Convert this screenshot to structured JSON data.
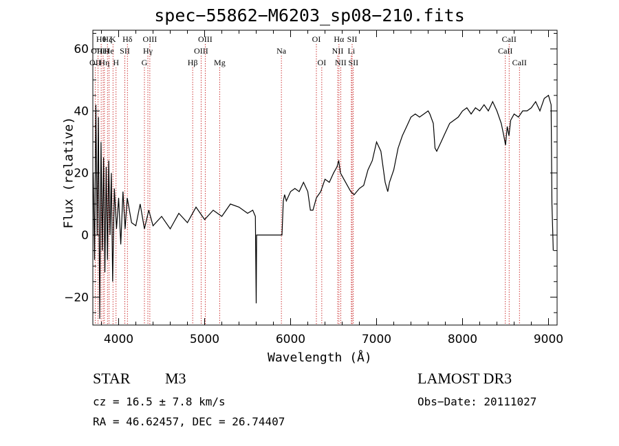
{
  "chart_data": {
    "type": "line",
    "title": "spec−55862−M6203_sp08−210.fits",
    "xlabel": "Wavelength (Å)",
    "ylabel": "Flux (relative)",
    "xlim": [
      3700,
      9100
    ],
    "ylim": [
      -29,
      66
    ],
    "xticks": [
      4000,
      5000,
      6000,
      7000,
      8000,
      9000
    ],
    "xtick_labels": [
      "4000",
      "5000",
      "6000",
      "7000",
      "8000",
      "9000"
    ],
    "yticks": [
      -20,
      0,
      20,
      40,
      60
    ],
    "ytick_labels": [
      "−20",
      "0",
      "20",
      "40",
      "60"
    ],
    "grid": false,
    "series": [
      {
        "name": "flux",
        "x": [
          3705,
          3720,
          3735,
          3750,
          3765,
          3780,
          3795,
          3810,
          3825,
          3840,
          3855,
          3870,
          3885,
          3900,
          3915,
          3930,
          3950,
          3975,
          4000,
          4025,
          4050,
          4075,
          4100,
          4150,
          4200,
          4250,
          4300,
          4350,
          4400,
          4500,
          4600,
          4700,
          4800,
          4900,
          5000,
          5100,
          5200,
          5300,
          5400,
          5500,
          5560,
          5590,
          5600,
          5605,
          5610,
          5650,
          5700,
          5800,
          5850,
          5900,
          5915,
          5930,
          5950,
          6000,
          6050,
          6100,
          6150,
          6200,
          6230,
          6260,
          6300,
          6350,
          6400,
          6450,
          6500,
          6540,
          6560,
          6580,
          6620,
          6660,
          6700,
          6740,
          6800,
          6850,
          6900,
          6950,
          7000,
          7050,
          7100,
          7130,
          7150,
          7200,
          7250,
          7300,
          7350,
          7400,
          7450,
          7500,
          7550,
          7600,
          7620,
          7660,
          7680,
          7700,
          7750,
          7800,
          7850,
          7900,
          7950,
          8000,
          8050,
          8100,
          8150,
          8200,
          8250,
          8300,
          8350,
          8400,
          8450,
          8480,
          8500,
          8520,
          8540,
          8560,
          8600,
          8650,
          8700,
          8750,
          8800,
          8850,
          8900,
          8950,
          9000,
          9030,
          9040,
          9050,
          9055
        ],
        "y": [
          20,
          -8,
          42,
          0,
          38,
          -27,
          30,
          -5,
          25,
          -12,
          22,
          -8,
          24,
          0,
          20,
          -15,
          15,
          2,
          12,
          -3,
          14,
          2,
          12,
          4,
          3,
          10,
          2,
          8,
          3,
          6,
          2,
          7,
          4,
          9,
          5,
          8,
          6,
          10,
          9,
          7,
          8,
          6,
          -22,
          0,
          0,
          0,
          0,
          0,
          0,
          0,
          11,
          13,
          11,
          14,
          15,
          14,
          17,
          14,
          8,
          8,
          12,
          14,
          18,
          17,
          20,
          22,
          24,
          20,
          18,
          16,
          14,
          13,
          15,
          16,
          21,
          24,
          30,
          27,
          17,
          14,
          17,
          21,
          28,
          32,
          35,
          38,
          39,
          38,
          39,
          40,
          39,
          36,
          28,
          27,
          30,
          33,
          36,
          37,
          38,
          40,
          41,
          39,
          41,
          40,
          42,
          40,
          43,
          40,
          36,
          32,
          29,
          35,
          32,
          37,
          39,
          38,
          40,
          40,
          41,
          43,
          40,
          44,
          45,
          42,
          10,
          0,
          -5
        ]
      }
    ],
    "line_markers": [
      {
        "wl": 3727,
        "label": "OII",
        "row": 3
      },
      {
        "wl": 3760,
        "label": "OIII",
        "row": 2
      },
      {
        "wl": 3797,
        "label": "Hθ",
        "row": 1
      },
      {
        "wl": 3820,
        "label": "HeI",
        "row": 2
      },
      {
        "wl": 3835,
        "label": "Hη",
        "row": 3
      },
      {
        "wl": 3870,
        "label": "Hζ",
        "row": 1
      },
      {
        "wl": 3889,
        "label": "He",
        "row": 2
      },
      {
        "wl": 3934,
        "label": "K",
        "row": 1
      },
      {
        "wl": 3970,
        "label": "H",
        "row": 3
      },
      {
        "wl": 4072,
        "label": "SII",
        "row": 2
      },
      {
        "wl": 4102,
        "label": "Hδ",
        "row": 1
      },
      {
        "wl": 4300,
        "label": "G",
        "row": 3
      },
      {
        "wl": 4340,
        "label": "Hγ",
        "row": 2
      },
      {
        "wl": 4363,
        "label": "OIII",
        "row": 1
      },
      {
        "wl": 4861,
        "label": "Hβ",
        "row": 3
      },
      {
        "wl": 4959,
        "label": "OIII",
        "row": 2
      },
      {
        "wl": 5007,
        "label": "OIII",
        "row": 1
      },
      {
        "wl": 5175,
        "label": "Mg",
        "row": 3
      },
      {
        "wl": 5893,
        "label": "Na",
        "row": 2
      },
      {
        "wl": 6300,
        "label": "OI",
        "row": 1
      },
      {
        "wl": 6363,
        "label": "OI",
        "row": 3
      },
      {
        "wl": 6548,
        "label": "NII",
        "row": 2
      },
      {
        "wl": 6563,
        "label": "Hα",
        "row": 1
      },
      {
        "wl": 6583,
        "label": "NII",
        "row": 3
      },
      {
        "wl": 6707,
        "label": "Li",
        "row": 2
      },
      {
        "wl": 6716,
        "label": "SII",
        "row": 1
      },
      {
        "wl": 6730,
        "label": "SII",
        "row": 3
      },
      {
        "wl": 8498,
        "label": "CaII",
        "row": 2
      },
      {
        "wl": 8542,
        "label": "CaII",
        "row": 1
      },
      {
        "wl": 8662,
        "label": "CaII",
        "row": 3
      }
    ],
    "marker_color": "#c00000"
  },
  "info": {
    "type_label": "STAR",
    "subclass": "M3",
    "survey": "LAMOST DR3",
    "cz": "cz = 16.5 ± 7.8 km/s",
    "obs_date": "Obs−Date: 20111027",
    "coords": "RA =  46.62457, DEC =  26.74407"
  }
}
